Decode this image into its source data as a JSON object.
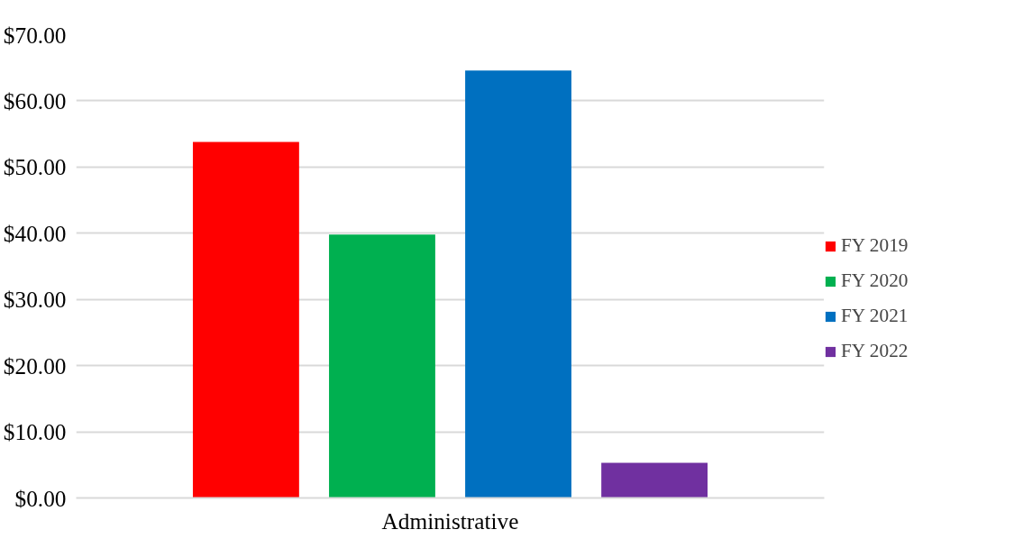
{
  "chart_data": {
    "type": "bar",
    "categories": [
      "Administrative"
    ],
    "series": [
      {
        "name": "FY 2019",
        "color": "#ff0000",
        "values": [
          53.8
        ]
      },
      {
        "name": "FY 2020",
        "color": "#00b050",
        "values": [
          39.8
        ]
      },
      {
        "name": "FY 2021",
        "color": "#0070c0",
        "values": [
          64.6
        ]
      },
      {
        "name": "FY 2022",
        "color": "#7030a0",
        "values": [
          5.3
        ]
      }
    ],
    "ylim": [
      0,
      70
    ],
    "yticks": [
      {
        "value": 0,
        "label": "$0.00"
      },
      {
        "value": 10,
        "label": "$10.00"
      },
      {
        "value": 20,
        "label": "$20.00"
      },
      {
        "value": 30,
        "label": "$30.00"
      },
      {
        "value": 40,
        "label": "$40.00"
      },
      {
        "value": 50,
        "label": "$50.00"
      },
      {
        "value": 60,
        "label": "$60.00"
      },
      {
        "value": 70,
        "label": "$70.00"
      }
    ],
    "grid": "y",
    "legend": "right"
  }
}
